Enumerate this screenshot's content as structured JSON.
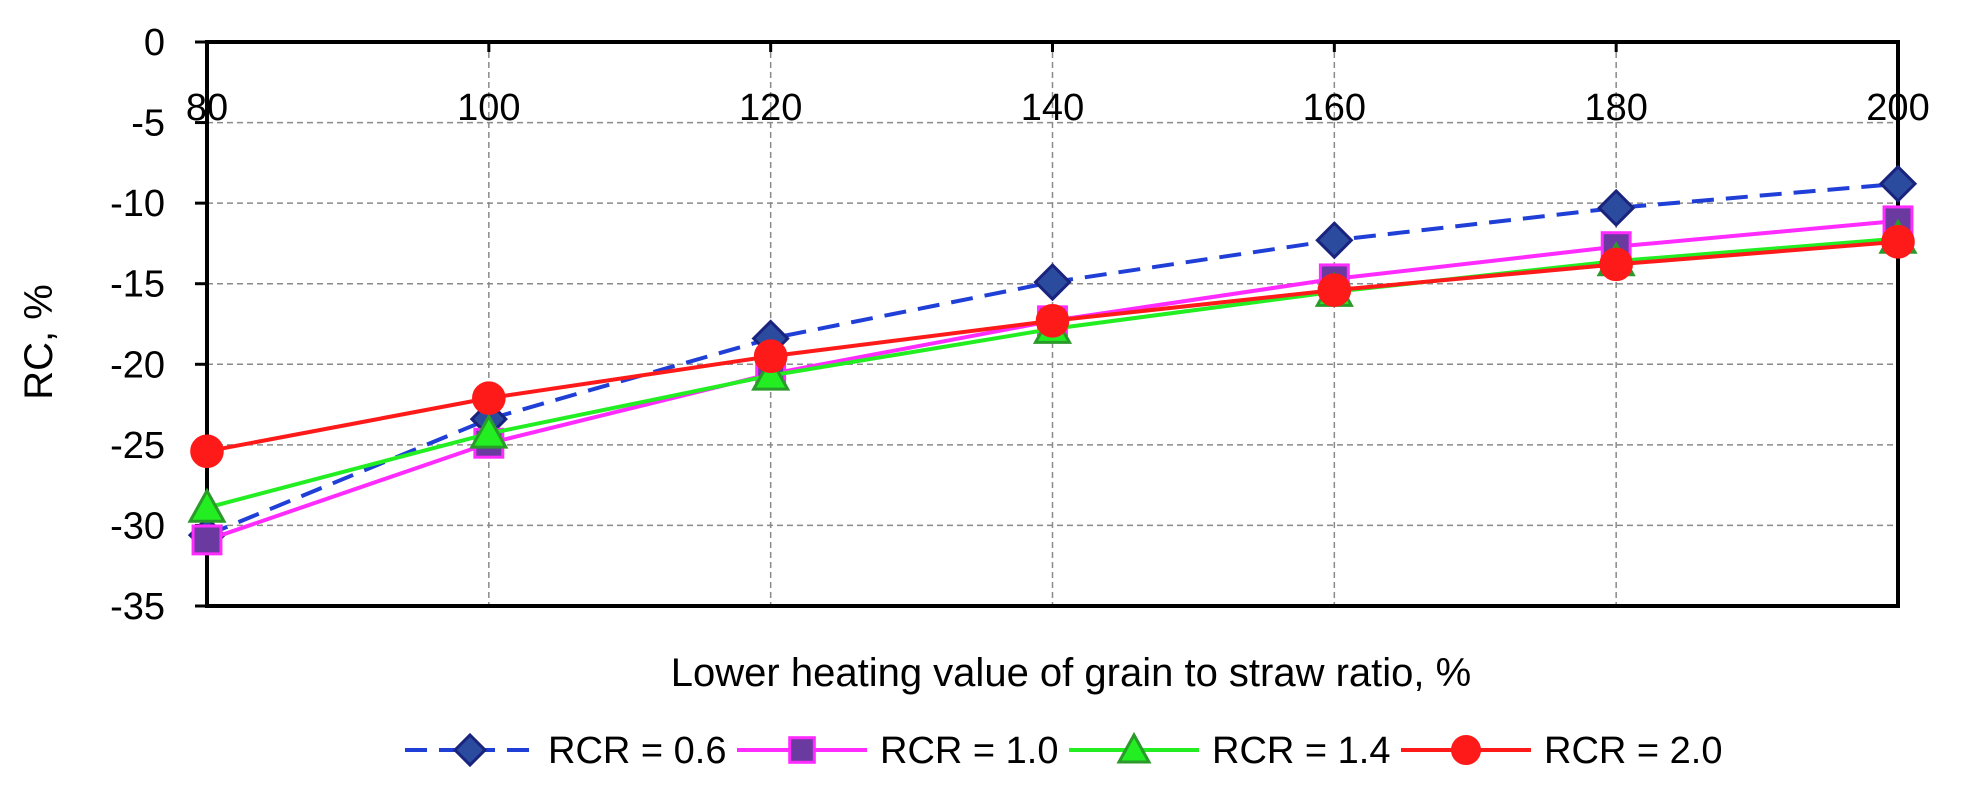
{
  "chart_data": {
    "type": "line",
    "title": "",
    "xlabel": "Lower heating value of grain to straw ratio, %",
    "ylabel": "RC, %",
    "x": [
      80,
      100,
      120,
      140,
      160,
      180,
      200
    ],
    "xlim": [
      80,
      200
    ],
    "ylim": [
      -35,
      0
    ],
    "x_ticks": [
      "80",
      "100",
      "120",
      "140",
      "160",
      "180",
      "200"
    ],
    "y_ticks": [
      "0",
      "-5",
      "-10",
      "-15",
      "-20",
      "-25",
      "-30",
      "-35"
    ],
    "x_tick_position": "top",
    "grid": true,
    "legend_position": "bottom",
    "series": [
      {
        "name": "RCR = 0.6",
        "values": [
          -30.6,
          -23.4,
          -18.4,
          -14.9,
          -12.3,
          -10.3,
          -8.8
        ],
        "color": "#1f3fd6",
        "marker": "diamond",
        "marker_fill": "#2b4c9e",
        "marker_stroke": "#1a237e",
        "dash": true
      },
      {
        "name": "RCR = 1.0",
        "values": [
          -30.9,
          -24.9,
          -20.6,
          -17.3,
          -14.7,
          -12.7,
          -11.1
        ],
        "color": "#ff2bff",
        "marker": "square",
        "marker_fill": "#6a3aa0",
        "marker_stroke": "#ff2bff",
        "dash": false
      },
      {
        "name": "RCR = 1.4",
        "values": [
          -28.9,
          -24.3,
          -20.7,
          -17.8,
          -15.5,
          -13.6,
          -12.2
        ],
        "color": "#22ee22",
        "marker": "triangle",
        "marker_fill": "#22ee22",
        "marker_stroke": "#2a9a2a",
        "dash": false
      },
      {
        "name": "RCR = 2.0",
        "values": [
          -25.4,
          -22.1,
          -19.5,
          -17.3,
          -15.4,
          -13.8,
          -12.4
        ],
        "color": "#ff1a1a",
        "marker": "circle",
        "marker_fill": "#ff1a1a",
        "marker_stroke": "#ff1a1a",
        "dash": false
      }
    ]
  }
}
